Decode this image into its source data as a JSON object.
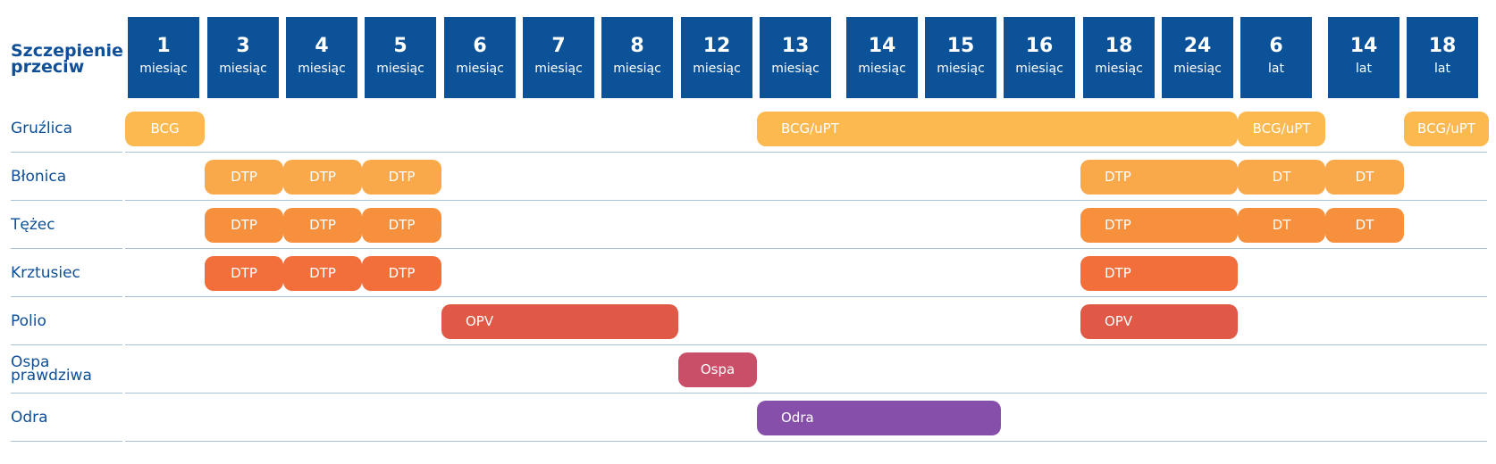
{
  "chart_data": {
    "type": "table",
    "corner_label": "Szczepienie przeciw",
    "columns": [
      {
        "num": "1",
        "unit": "miesiąc"
      },
      {
        "num": "3",
        "unit": "miesiąc"
      },
      {
        "num": "4",
        "unit": "miesiąc"
      },
      {
        "num": "5",
        "unit": "miesiąc"
      },
      {
        "num": "6",
        "unit": "miesiąc"
      },
      {
        "num": "7",
        "unit": "miesiąc"
      },
      {
        "num": "8",
        "unit": "miesiąc"
      },
      {
        "num": "12",
        "unit": "miesiąc"
      },
      {
        "num": "13",
        "unit": "miesiąc"
      },
      {
        "num": "14",
        "unit": "miesiąc"
      },
      {
        "num": "15",
        "unit": "miesiąc"
      },
      {
        "num": "16",
        "unit": "miesiąc"
      },
      {
        "num": "18",
        "unit": "miesiąc"
      },
      {
        "num": "24",
        "unit": "miesiąc"
      },
      {
        "num": "6",
        "unit": "lat"
      },
      {
        "num": "14",
        "unit": "lat"
      },
      {
        "num": "18",
        "unit": "lat"
      }
    ],
    "rows": [
      {
        "label": "Gruźlica",
        "bars": [
          {
            "text": "BCG",
            "from": "1 miesiąc",
            "to": "1 miesiąc",
            "color": "#fbb94f"
          },
          {
            "text": "BCG/uPT",
            "from": "13 miesiąc",
            "to": "24 miesiąc",
            "color": "#fbb94f"
          },
          {
            "text": "BCG/uPT",
            "from": "6 lat",
            "to": "6 lat",
            "color": "#fbb94f"
          },
          {
            "text": "BCG/uPT",
            "from": "18 lat",
            "to": "18 lat",
            "color": "#fbb94f"
          }
        ]
      },
      {
        "label": "Błonica",
        "bars": [
          {
            "text": "DTP",
            "from": "3 miesiąc",
            "to": "3 miesiąc",
            "color": "#f9a84a"
          },
          {
            "text": "DTP",
            "from": "4 miesiąc",
            "to": "4 miesiąc",
            "color": "#f9a84a"
          },
          {
            "text": "DTP",
            "from": "5 miesiąc",
            "to": "5 miesiąc",
            "color": "#f9a84a"
          },
          {
            "text": "DTP",
            "from": "18 miesiąc",
            "to": "24 miesiąc",
            "color": "#f9a84a"
          },
          {
            "text": "DT",
            "from": "6 lat",
            "to": "6 lat",
            "color": "#f9a84a"
          },
          {
            "text": "DT",
            "from": "14 lat",
            "to": "14 lat",
            "color": "#f9a84a"
          }
        ]
      },
      {
        "label": "Tężec",
        "bars": [
          {
            "text": "DTP",
            "from": "3 miesiąc",
            "to": "3 miesiąc",
            "color": "#f6903c"
          },
          {
            "text": "DTP",
            "from": "4 miesiąc",
            "to": "4 miesiąc",
            "color": "#f6903c"
          },
          {
            "text": "DTP",
            "from": "5 miesiąc",
            "to": "5 miesiąc",
            "color": "#f6903c"
          },
          {
            "text": "DTP",
            "from": "18 miesiąc",
            "to": "24 miesiąc",
            "color": "#f6903c"
          },
          {
            "text": "DT",
            "from": "6 lat",
            "to": "6 lat",
            "color": "#f6903c"
          },
          {
            "text": "DT",
            "from": "14 lat",
            "to": "14 lat",
            "color": "#f6903c"
          }
        ]
      },
      {
        "label": "Krztusiec",
        "bars": [
          {
            "text": "DTP",
            "from": "3 miesiąc",
            "to": "3 miesiąc",
            "color": "#f26f3b"
          },
          {
            "text": "DTP",
            "from": "4 miesiąc",
            "to": "4 miesiąc",
            "color": "#f26f3b"
          },
          {
            "text": "DTP",
            "from": "5 miesiąc",
            "to": "5 miesiąc",
            "color": "#f26f3b"
          },
          {
            "text": "DTP",
            "from": "18 miesiąc",
            "to": "24 miesiąc",
            "color": "#f26f3b"
          }
        ]
      },
      {
        "label": "Polio",
        "bars": [
          {
            "text": "OPV",
            "from": "6 miesiąc",
            "to": "8 miesiąc",
            "color": "#e05846"
          },
          {
            "text": "OPV",
            "from": "18 miesiąc",
            "to": "24 miesiąc",
            "color": "#e05846"
          }
        ]
      },
      {
        "label": "Ospa prawdziwa",
        "bars": [
          {
            "text": "Ospa",
            "from": "12 miesiąc",
            "to": "12 miesiąc",
            "color": "#c84f67"
          }
        ]
      },
      {
        "label": "Odra",
        "bars": [
          {
            "text": "Odra",
            "from": "13 miesiąc",
            "to": "15 miesiąc",
            "color": "#8650aa"
          }
        ]
      }
    ]
  }
}
